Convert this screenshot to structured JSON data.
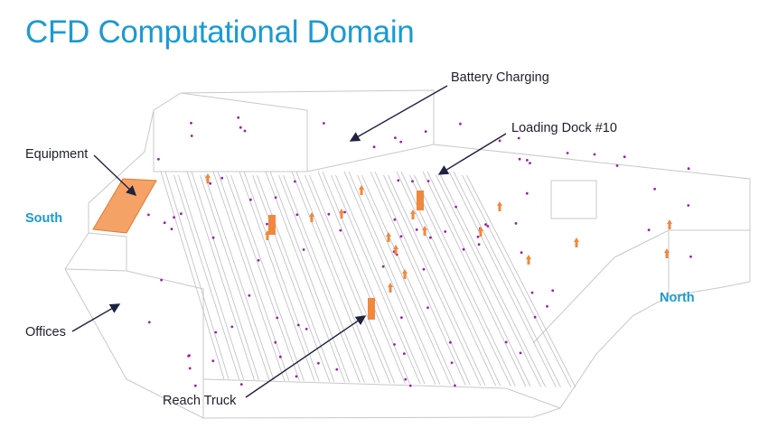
{
  "title": "CFD Computational Domain",
  "callouts": {
    "battery_charging": "Battery Charging",
    "loading_dock": "Loading Dock #10",
    "equipment": "Equipment",
    "offices": "Offices",
    "reach_truck": "Reach Truck"
  },
  "directions": {
    "south": "South",
    "north": "North"
  },
  "colors": {
    "title": "#1b9ad2",
    "direction_labels": "#1b9ad2",
    "wireframe": "#c8c8cc",
    "equipment": "#f0883e",
    "sensor_points": "#9b1fa8",
    "arrows": "#1f2240"
  }
}
